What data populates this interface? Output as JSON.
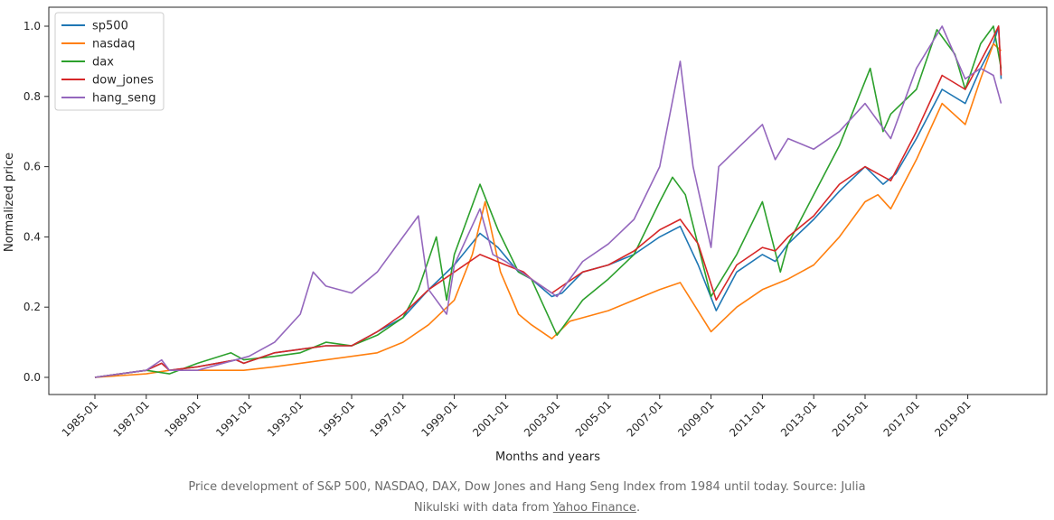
{
  "chart_data": {
    "type": "line",
    "title": "",
    "xlabel": "Months and years",
    "ylabel": "Normalized price",
    "ylim": [
      0.0,
      1.0
    ],
    "y_ticks": [
      "0.0",
      "0.2",
      "0.4",
      "0.6",
      "0.8",
      "1.0"
    ],
    "x_ticks": [
      "1985-01",
      "1987-01",
      "1989-01",
      "1991-01",
      "1993-01",
      "1995-01",
      "1997-01",
      "1999-01",
      "2001-01",
      "2003-01",
      "2005-01",
      "2007-01",
      "2009-01",
      "2011-01",
      "2013-01",
      "2015-01",
      "2017-01",
      "2019-01"
    ],
    "grid": false,
    "legend": "top-left",
    "series": [
      {
        "name": "sp500",
        "color": "#1f77b4",
        "x": [
          1985.0,
          1986.0,
          1987.0,
          1987.6,
          1987.9,
          1989.0,
          1990.5,
          1990.8,
          1992.0,
          1993.0,
          1994.0,
          1995.0,
          1996.0,
          1997.0,
          1998.0,
          1999.0,
          2000.0,
          2000.7,
          2001.5,
          2002.0,
          2002.8,
          2003.2,
          2004.0,
          2005.0,
          2006.0,
          2007.0,
          2007.8,
          2008.5,
          2009.2,
          2010.0,
          2011.0,
          2011.5,
          2012.0,
          2013.0,
          2014.0,
          2015.0,
          2015.7,
          2016.2,
          2017.0,
          2018.0,
          2018.9,
          2019.5,
          2020.0,
          2020.2,
          2020.3
        ],
        "values": [
          0.0,
          0.01,
          0.02,
          0.04,
          0.02,
          0.03,
          0.05,
          0.04,
          0.07,
          0.08,
          0.09,
          0.09,
          0.13,
          0.17,
          0.25,
          0.32,
          0.41,
          0.37,
          0.3,
          0.28,
          0.23,
          0.24,
          0.3,
          0.32,
          0.35,
          0.4,
          0.43,
          0.32,
          0.19,
          0.3,
          0.35,
          0.33,
          0.38,
          0.45,
          0.53,
          0.6,
          0.55,
          0.58,
          0.68,
          0.82,
          0.78,
          0.88,
          0.95,
          1.0,
          0.85
        ]
      },
      {
        "name": "nasdaq",
        "color": "#ff7f0e",
        "x": [
          1985.0,
          1987.0,
          1987.9,
          1989.0,
          1990.8,
          1992.0,
          1994.0,
          1996.0,
          1997.0,
          1998.0,
          1999.0,
          1999.7,
          2000.2,
          2000.8,
          2001.5,
          2002.0,
          2002.8,
          2003.5,
          2005.0,
          2006.0,
          2007.0,
          2007.8,
          2009.0,
          2010.0,
          2011.0,
          2012.0,
          2013.0,
          2014.0,
          2015.0,
          2015.5,
          2016.0,
          2017.0,
          2018.0,
          2018.9,
          2019.5,
          2020.0,
          2020.3
        ],
        "values": [
          0.0,
          0.01,
          0.02,
          0.02,
          0.02,
          0.03,
          0.05,
          0.07,
          0.1,
          0.15,
          0.22,
          0.35,
          0.5,
          0.3,
          0.18,
          0.15,
          0.11,
          0.16,
          0.19,
          0.22,
          0.25,
          0.27,
          0.13,
          0.2,
          0.25,
          0.28,
          0.32,
          0.4,
          0.5,
          0.52,
          0.48,
          0.62,
          0.78,
          0.72,
          0.85,
          0.95,
          0.93
        ]
      },
      {
        "name": "dax",
        "color": "#2ca02c",
        "x": [
          1985.0,
          1986.0,
          1987.0,
          1987.9,
          1989.0,
          1990.3,
          1990.8,
          1992.0,
          1993.0,
          1994.0,
          1995.0,
          1996.0,
          1997.0,
          1997.6,
          1998.3,
          1998.7,
          1999.0,
          2000.0,
          2000.7,
          2001.5,
          2002.0,
          2003.0,
          2004.0,
          2005.0,
          2006.0,
          2007.0,
          2007.5,
          2008.0,
          2009.0,
          2010.0,
          2011.0,
          2011.7,
          2012.0,
          2013.0,
          2014.0,
          2015.2,
          2015.7,
          2016.0,
          2017.0,
          2017.8,
          2018.5,
          2018.9,
          2019.5,
          2020.0,
          2020.3
        ],
        "values": [
          0.0,
          0.01,
          0.02,
          0.01,
          0.04,
          0.07,
          0.05,
          0.06,
          0.07,
          0.1,
          0.09,
          0.12,
          0.17,
          0.25,
          0.4,
          0.22,
          0.35,
          0.55,
          0.42,
          0.3,
          0.28,
          0.12,
          0.22,
          0.28,
          0.35,
          0.5,
          0.57,
          0.52,
          0.23,
          0.35,
          0.5,
          0.3,
          0.38,
          0.52,
          0.66,
          0.88,
          0.7,
          0.75,
          0.82,
          0.99,
          0.92,
          0.82,
          0.95,
          1.0,
          0.88
        ]
      },
      {
        "name": "dow_jones",
        "color": "#d62728",
        "x": [
          1985.0,
          1986.0,
          1987.0,
          1987.6,
          1987.9,
          1989.0,
          1990.5,
          1990.8,
          1992.0,
          1993.0,
          1994.0,
          1995.0,
          1996.0,
          1997.0,
          1998.0,
          1999.0,
          2000.0,
          2001.0,
          2001.7,
          2002.0,
          2002.8,
          2004.0,
          2005.0,
          2006.0,
          2007.0,
          2007.8,
          2008.5,
          2009.2,
          2010.0,
          2011.0,
          2011.5,
          2012.0,
          2013.0,
          2014.0,
          2015.0,
          2015.5,
          2016.0,
          2017.0,
          2018.0,
          2018.9,
          2019.5,
          2020.0,
          2020.2,
          2020.3
        ],
        "values": [
          0.0,
          0.01,
          0.02,
          0.04,
          0.02,
          0.03,
          0.05,
          0.04,
          0.07,
          0.08,
          0.09,
          0.09,
          0.13,
          0.18,
          0.25,
          0.3,
          0.35,
          0.32,
          0.3,
          0.28,
          0.24,
          0.3,
          0.32,
          0.36,
          0.42,
          0.45,
          0.38,
          0.22,
          0.32,
          0.37,
          0.36,
          0.4,
          0.46,
          0.55,
          0.6,
          0.58,
          0.56,
          0.7,
          0.86,
          0.82,
          0.9,
          0.97,
          1.0,
          0.86
        ]
      },
      {
        "name": "hang_seng",
        "color": "#9467bd",
        "x": [
          1985.0,
          1986.0,
          1987.0,
          1987.6,
          1987.9,
          1989.0,
          1990.0,
          1991.0,
          1992.0,
          1993.0,
          1993.5,
          1994.0,
          1995.0,
          1996.0,
          1997.0,
          1997.6,
          1998.0,
          1998.7,
          1999.0,
          2000.0,
          2000.5,
          2001.0,
          2002.0,
          2003.0,
          2004.0,
          2005.0,
          2006.0,
          2007.0,
          2007.8,
          2008.3,
          2009.0,
          2009.3,
          2010.0,
          2011.0,
          2011.5,
          2012.0,
          2013.0,
          2014.0,
          2015.0,
          2015.3,
          2016.0,
          2017.0,
          2018.0,
          2018.9,
          2019.5,
          2020.0,
          2020.3
        ],
        "values": [
          0.0,
          0.01,
          0.02,
          0.05,
          0.02,
          0.02,
          0.04,
          0.06,
          0.1,
          0.18,
          0.3,
          0.26,
          0.24,
          0.3,
          0.4,
          0.46,
          0.25,
          0.18,
          0.32,
          0.48,
          0.35,
          0.33,
          0.28,
          0.23,
          0.33,
          0.38,
          0.45,
          0.6,
          0.9,
          0.6,
          0.37,
          0.6,
          0.65,
          0.72,
          0.62,
          0.68,
          0.65,
          0.7,
          0.78,
          0.75,
          0.68,
          0.88,
          1.0,
          0.85,
          0.88,
          0.86,
          0.78
        ]
      }
    ]
  },
  "caption": {
    "text_before_link": "Price development of S&P 500, NASDAQ, DAX, Dow Jones and Hang Seng Index from 1984 until today. Source: Julia Nikulski with data from ",
    "link_text": "Yahoo Finance",
    "text_after_link": "."
  }
}
